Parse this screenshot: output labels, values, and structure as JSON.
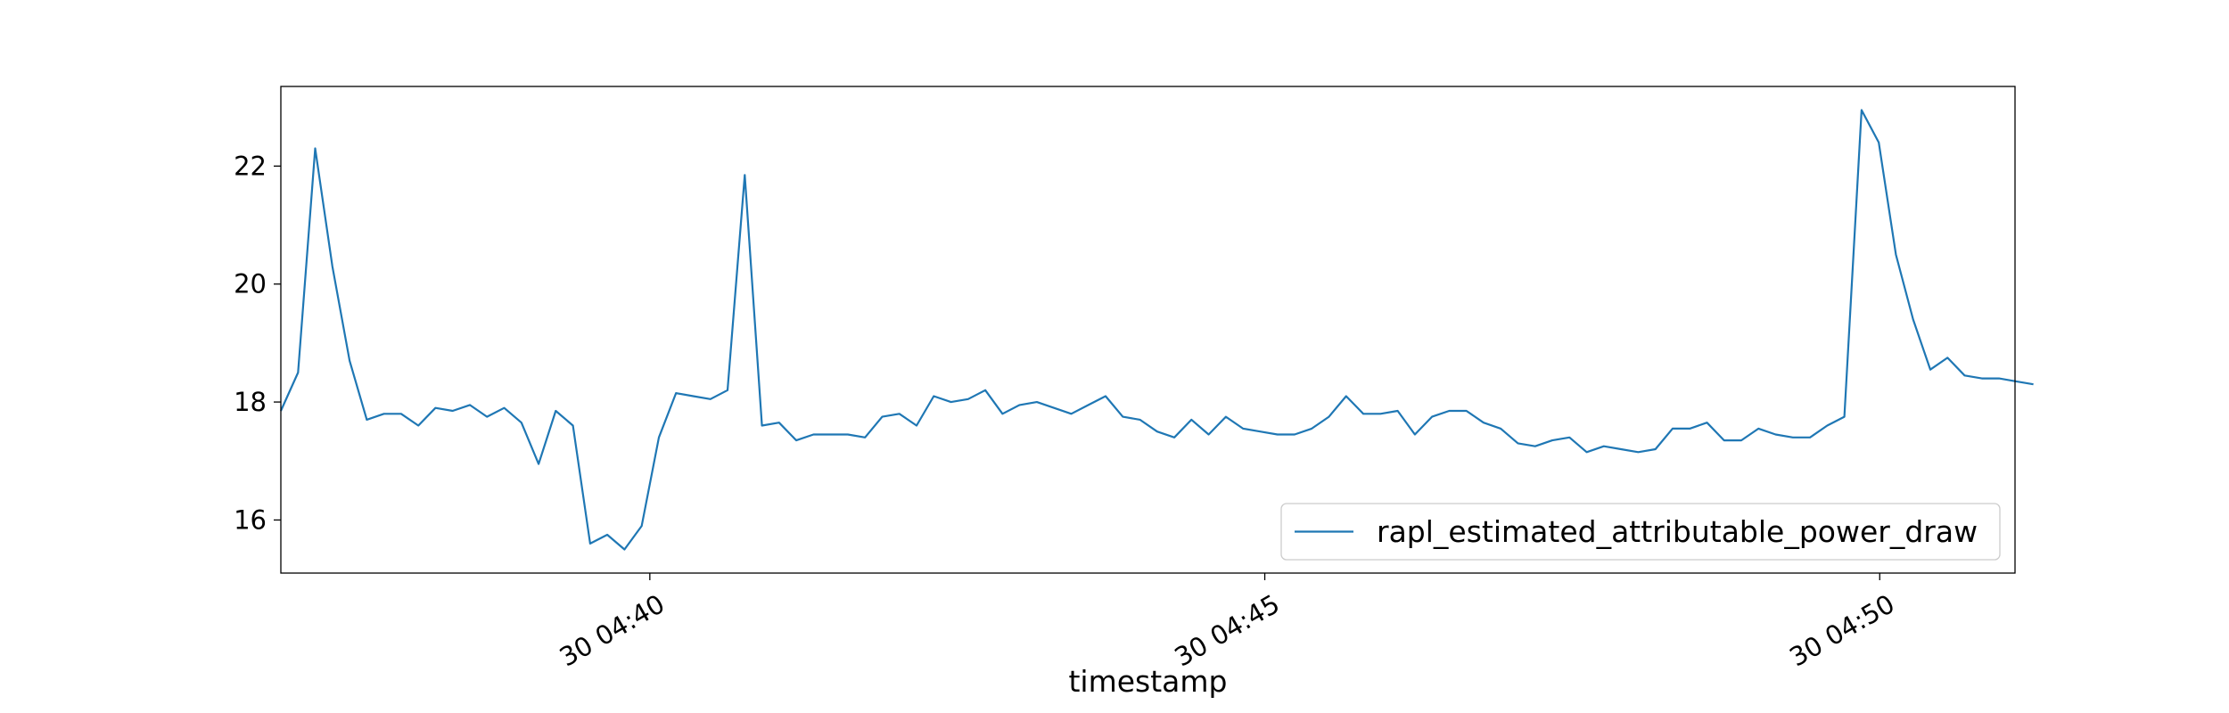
{
  "chart_data": {
    "type": "line",
    "title": "",
    "xlabel": "timestamp",
    "ylabel": "",
    "x_unit": "minutes",
    "xlim": [
      37.0,
      51.1
    ],
    "ylim": [
      15.1,
      23.35
    ],
    "x_ticks": [
      {
        "value": 40,
        "label": "30 04:40"
      },
      {
        "value": 45,
        "label": "30 04:45"
      },
      {
        "value": 50,
        "label": "30 04:50"
      }
    ],
    "y_ticks": [
      {
        "value": 16,
        "label": "16"
      },
      {
        "value": 18,
        "label": "18"
      },
      {
        "value": 20,
        "label": "20"
      },
      {
        "value": 22,
        "label": "22"
      }
    ],
    "grid": false,
    "legend": {
      "position": "bottom-right"
    },
    "line_color": "#1f77b4",
    "series": [
      {
        "name": "rapl_estimated_attributable_power_draw",
        "x_start": 37.0,
        "x_step": 0.1397,
        "values": [
          17.85,
          18.5,
          22.3,
          20.3,
          18.7,
          17.7,
          17.8,
          17.8,
          17.6,
          17.9,
          17.85,
          17.95,
          17.75,
          17.9,
          17.65,
          16.95,
          17.85,
          17.6,
          15.6,
          15.75,
          15.5,
          15.9,
          17.4,
          18.15,
          18.1,
          18.05,
          18.2,
          21.85,
          17.6,
          17.65,
          17.35,
          17.45,
          17.45,
          17.45,
          17.4,
          17.75,
          17.8,
          17.6,
          18.1,
          18.0,
          18.05,
          18.2,
          17.8,
          17.95,
          18.0,
          17.9,
          17.8,
          17.95,
          18.1,
          17.75,
          17.7,
          17.5,
          17.4,
          17.7,
          17.45,
          17.75,
          17.55,
          17.5,
          17.45,
          17.45,
          17.55,
          17.75,
          18.1,
          17.8,
          17.8,
          17.85,
          17.45,
          17.75,
          17.85,
          17.85,
          17.65,
          17.55,
          17.3,
          17.25,
          17.35,
          17.4,
          17.15,
          17.25,
          17.2,
          17.15,
          17.2,
          17.55,
          17.55,
          17.65,
          17.35,
          17.35,
          17.55,
          17.45,
          17.4,
          17.4,
          17.6,
          17.75,
          22.95,
          22.4,
          20.5,
          19.4,
          18.55,
          18.75,
          18.45,
          18.4,
          18.4,
          18.35,
          18.3
        ]
      }
    ]
  }
}
